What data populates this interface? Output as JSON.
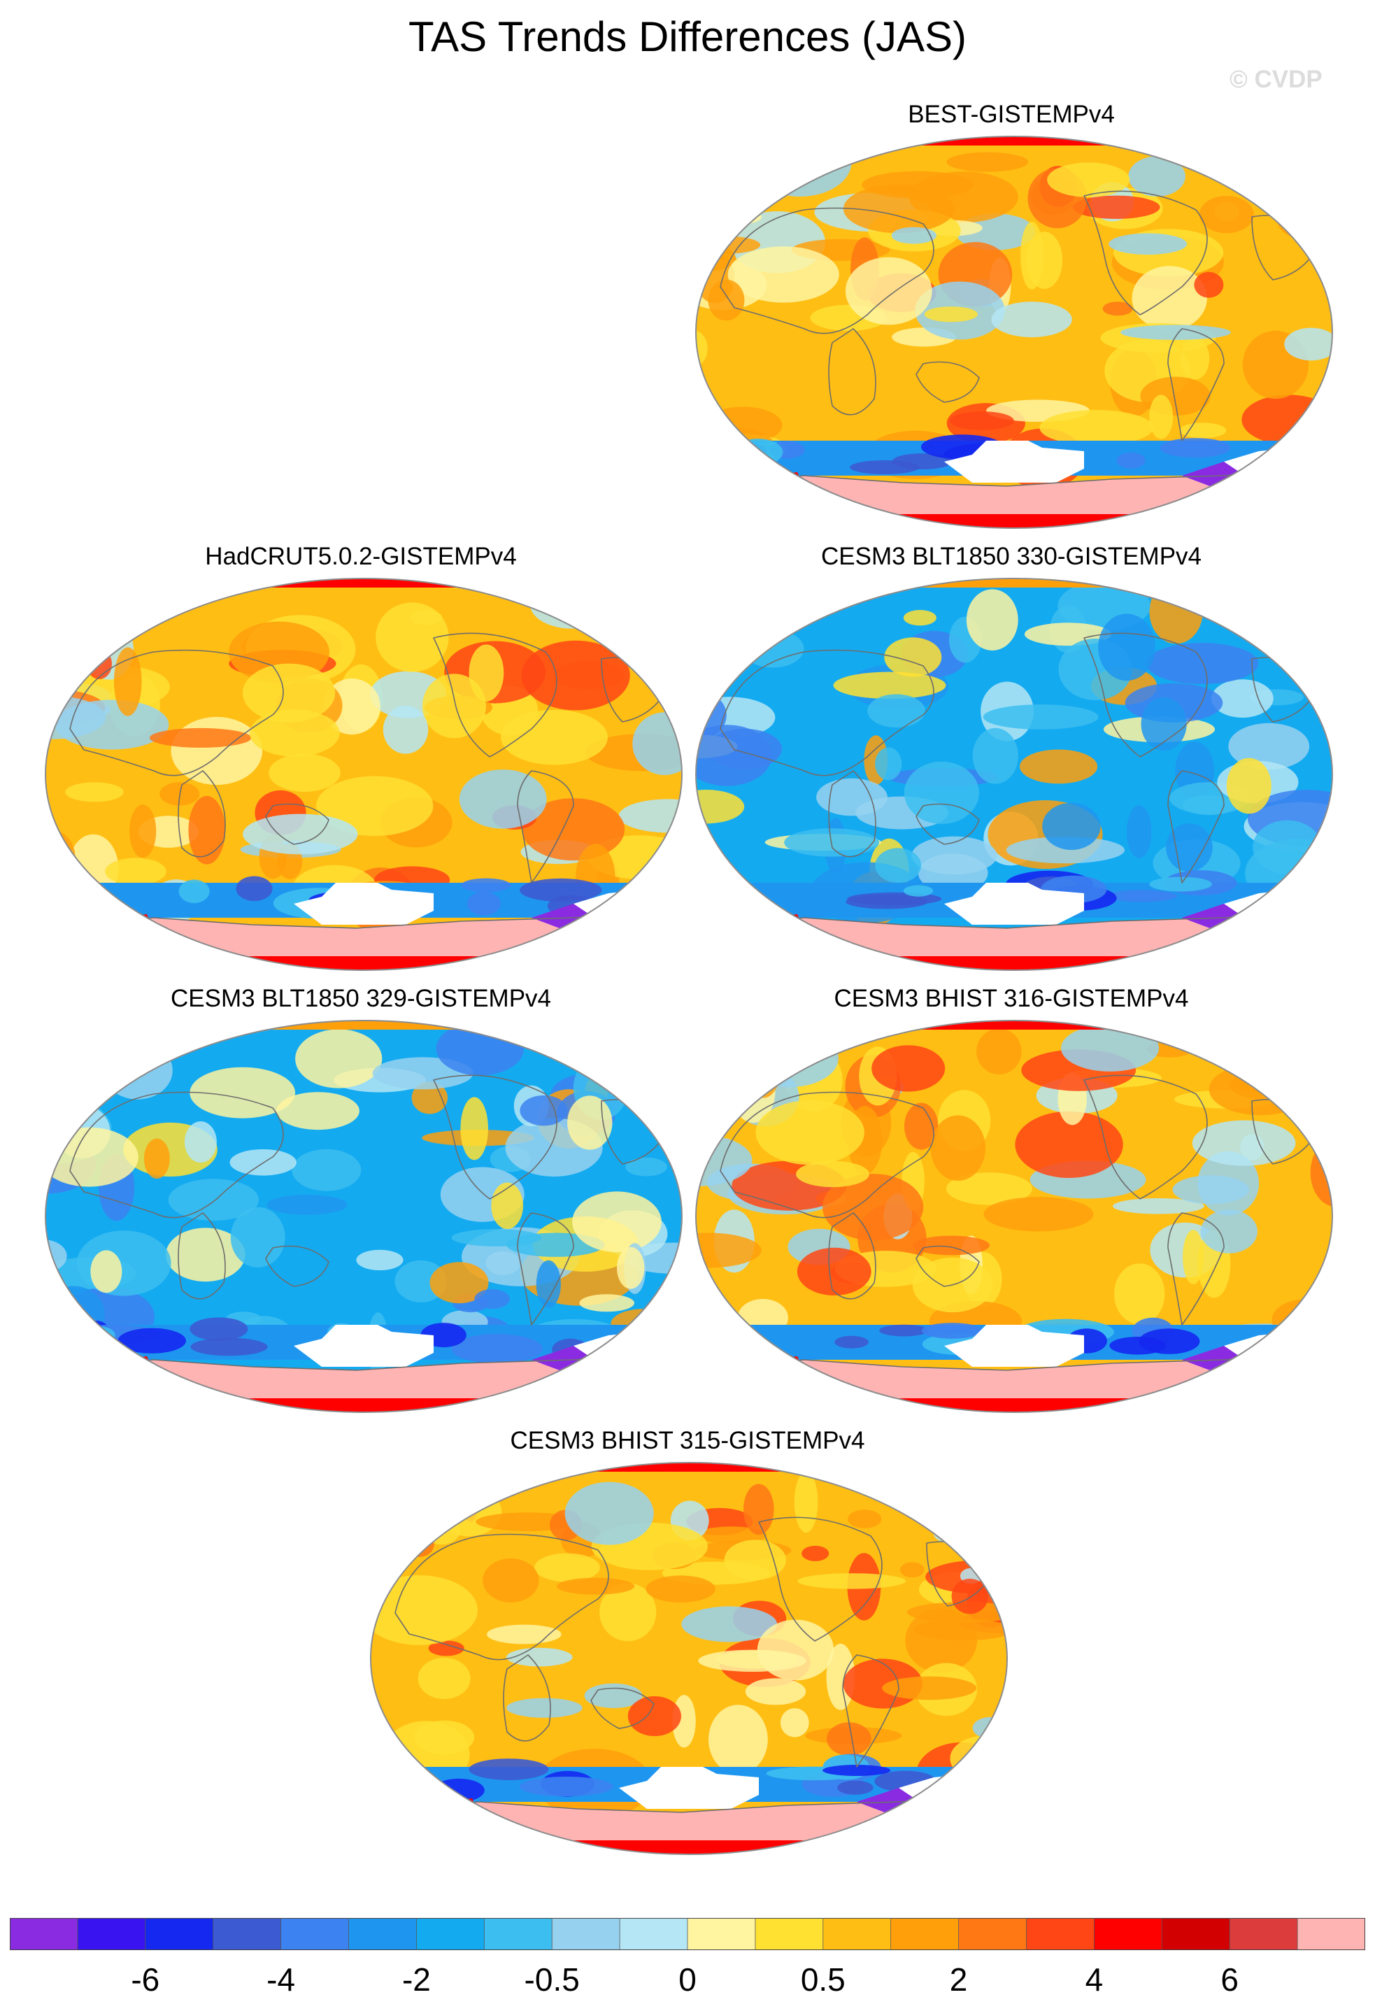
{
  "title": "TAS Trends Differences (JAS)",
  "watermark": "© CVDP",
  "panels": [
    {
      "label": "BEST-GISTEMPv4",
      "pattern": "warm"
    },
    {
      "label": "HadCRUT5.0.2-GISTEMPv4",
      "pattern": "warm"
    },
    {
      "label": "CESM3 BLT1850 330-GISTEMPv4",
      "pattern": "cool"
    },
    {
      "label": "CESM3 BLT1850 329-GISTEMPv4",
      "pattern": "cool"
    },
    {
      "label": "CESM3 BHIST 316-GISTEMPv4",
      "pattern": "warm"
    },
    {
      "label": "CESM3 BHIST 315-GISTEMPv4",
      "pattern": "warm"
    }
  ],
  "colorbar": {
    "colors": [
      "#8a2be2",
      "#3a14f0",
      "#1428f0",
      "#3c5ad2",
      "#3c82f0",
      "#1e96f0",
      "#14aaf0",
      "#3cbef0",
      "#96d2f0",
      "#b4e6f5",
      "#fff5a0",
      "#ffe132",
      "#ffbe14",
      "#ffa00a",
      "#ff7814",
      "#ff4614",
      "#ff0000",
      "#d20000",
      "#dc3c3c",
      "#ffb4b4"
    ],
    "tick_labels": [
      "-6",
      "-4",
      "-2",
      "-0.5",
      "0",
      "0.5",
      "2",
      "4",
      "6"
    ]
  }
}
